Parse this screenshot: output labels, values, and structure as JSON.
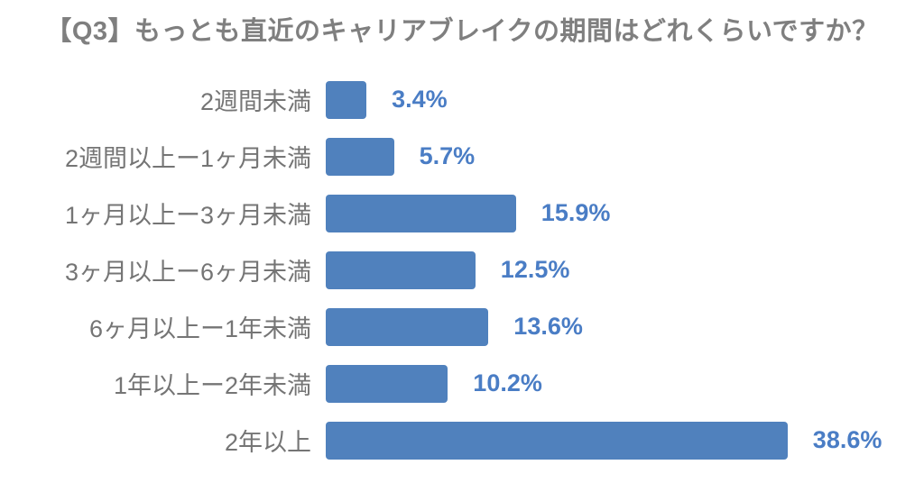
{
  "title": "【Q3】もっとも直近のキャリアブレイクの期間はどれくらいですか？",
  "colors": {
    "bar": "#5081bd",
    "value_text": "#4a7dc5",
    "category_text": "#757575",
    "title_text": "#7f7f7f",
    "background": "#ffffff"
  },
  "chart_data": {
    "type": "bar",
    "orientation": "horizontal",
    "title": "【Q3】もっとも直近のキャリアブレイクの期間はどれくらいですか？",
    "categories": [
      "2週間未満",
      "2週間以上ー1ヶ月未満",
      "1ヶ月以上ー3ヶ月未満",
      "3ヶ月以上ー6ヶ月未満",
      "6ヶ月以上ー1年未満",
      "1年以上ー2年未満",
      "2年以上"
    ],
    "values": [
      3.4,
      5.7,
      15.9,
      12.5,
      13.6,
      10.2,
      38.6
    ],
    "value_labels": [
      "3.4%",
      "5.7%",
      "15.9%",
      "12.5%",
      "13.6%",
      "10.2%",
      "38.6%"
    ],
    "xlabel": "",
    "ylabel": "",
    "xlim": [
      0,
      40
    ],
    "grid": false,
    "legend": false,
    "value_label_position": "right-of-bar"
  }
}
